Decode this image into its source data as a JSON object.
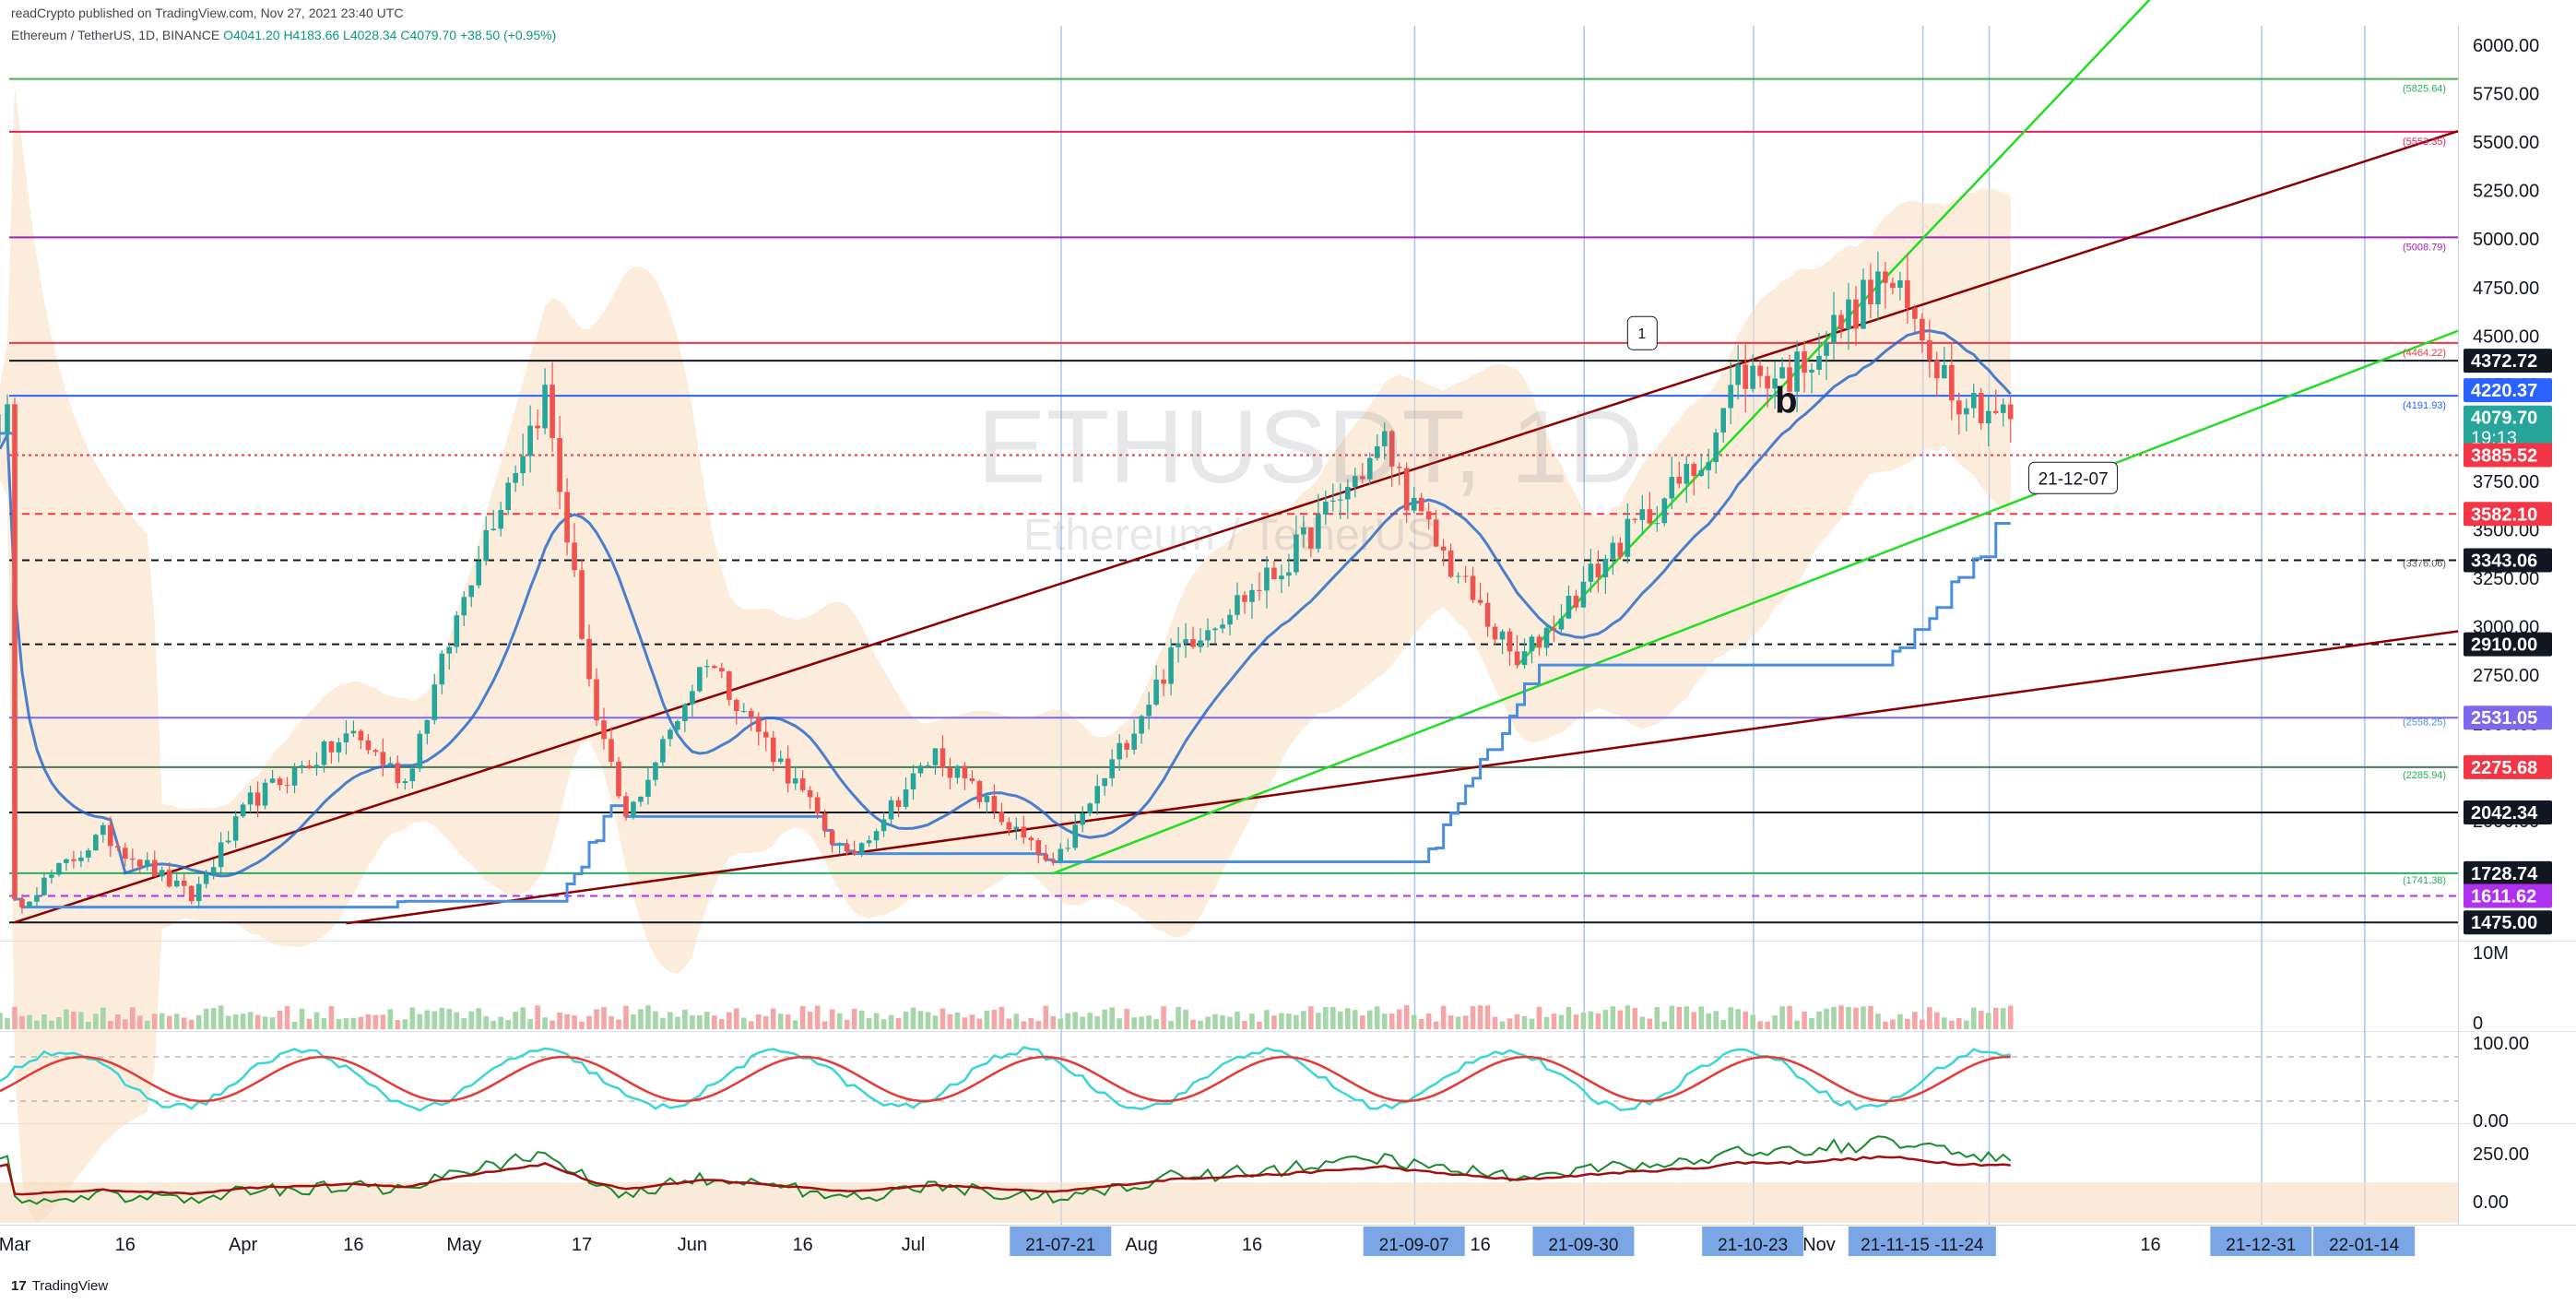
{
  "header": {
    "published": "readCrypto published on TradingView.com, Nov 27, 2021 23:40 UTC",
    "symbol_line": "Ethereum / TetherUS, 1D, BINANCE",
    "ohlc": "O4041.20 H4183.66 L4028.34 C4079.70 +38.50 (+0.95%)"
  },
  "watermark": {
    "symbol": "ETHUSDT, 1D",
    "name": "Ethereum / TetherUS"
  },
  "footer": {
    "logo": "17",
    "brand": "TradingView"
  },
  "colors": {
    "candle_up": "#26a69a",
    "candle_down": "#ef5350",
    "band": "#f7dcc0",
    "ma_blue": "#1e64c8",
    "trend_green": "#22dd22",
    "channel_red": "#8b0000"
  },
  "chart_data": {
    "type": "candlestick",
    "title": "ETHUSDT, 1D",
    "ylim": [
      1400,
      6100
    ],
    "price_axis_ticks": [
      6000,
      5750,
      5500,
      5250,
      5000,
      4750,
      4500,
      4250,
      4000,
      3750,
      3500,
      3250,
      3000,
      2750,
      2500,
      2250,
      2000,
      1750,
      1500
    ],
    "price_axis_labels": [
      "6000.00",
      "5750.00",
      "5500.00",
      "5250.00",
      "5000.00",
      "4750.00",
      "4500.00",
      "4250.00",
      "4000.00",
      "3750.00",
      "3500.00",
      "3250.00",
      "3000.00",
      "2750.00",
      "2500.00",
      "2250.00",
      "2000.00",
      "1750.00",
      "1500.00"
    ],
    "time_axis_labels": [
      {
        "date": "2021-03-01",
        "label": "Mar"
      },
      {
        "date": "2021-03-16",
        "label": "16"
      },
      {
        "date": "2021-04-01",
        "label": "Apr"
      },
      {
        "date": "2021-04-16",
        "label": "16"
      },
      {
        "date": "2021-05-01",
        "label": "May"
      },
      {
        "date": "2021-05-17",
        "label": "17"
      },
      {
        "date": "2021-06-01",
        "label": "Jun"
      },
      {
        "date": "2021-06-16",
        "label": "16"
      },
      {
        "date": "2021-07-01",
        "label": "Jul"
      },
      {
        "date": "2021-08-01",
        "label": "Aug"
      },
      {
        "date": "2021-08-16",
        "label": "16"
      },
      {
        "date": "2021-09-16",
        "label": "16"
      },
      {
        "date": "2021-11-01",
        "label": "Nov"
      },
      {
        "date": "2021-12-16",
        "label": "16"
      }
    ],
    "highlighted_dates": [
      {
        "date": "2021-07-21",
        "label": "21-07-21"
      },
      {
        "date": "2021-09-07",
        "label": "21-09-07"
      },
      {
        "date": "2021-09-30",
        "label": "21-09-30"
      },
      {
        "date": "2021-10-23",
        "label": "21-10-23"
      },
      {
        "date": "2021-11-15",
        "label": "21-11-15 -11-24"
      },
      {
        "date": "2021-12-31",
        "label": "21-12-31"
      },
      {
        "date": "2022-01-14",
        "label": "22-01-14"
      }
    ],
    "vertical_marker_dates": [
      "2021-07-21",
      "2021-09-07",
      "2021-09-30",
      "2021-10-23",
      "2021-11-15",
      "2021-11-24",
      "2021-12-31",
      "2022-01-14"
    ],
    "price_labels": [
      {
        "value": 4372.72,
        "label": "4372.72",
        "color": "#131722"
      },
      {
        "value": 4220.37,
        "label": "4220.37",
        "color": "#2962ff"
      },
      {
        "value": 4079.7,
        "label": "4079.70",
        "color": "#26a69a",
        "countdown": "19:13"
      },
      {
        "value": 3885.52,
        "label": "3885.52",
        "color": "#f23645"
      },
      {
        "value": 3582.1,
        "label": "3582.10",
        "color": "#f23645"
      },
      {
        "value": 3343.06,
        "label": "3343.06",
        "color": "#131722"
      },
      {
        "value": 2910.0,
        "label": "2910.00",
        "color": "#131722"
      },
      {
        "value": 2531.05,
        "label": "2531.05",
        "color": "#7b68ee"
      },
      {
        "value": 2275.68,
        "label": "2275.68",
        "color": "#f23645"
      },
      {
        "value": 2042.34,
        "label": "2042.34",
        "color": "#131722"
      },
      {
        "value": 1728.74,
        "label": "1728.74",
        "color": "#131722"
      },
      {
        "value": 1611.62,
        "label": "1611.62",
        "color": "#b030f0"
      },
      {
        "value": 1475.0,
        "label": "1475.00",
        "color": "#131722"
      }
    ],
    "small_level_labels": [
      {
        "value": 5825.64,
        "label": "(5825.64)",
        "color": "#27ae60"
      },
      {
        "value": 5553.35,
        "label": "(5553.35)",
        "color": "#e91e63"
      },
      {
        "value": 5008.79,
        "label": "(5008.79)",
        "color": "#9c27b0"
      },
      {
        "value": 4464.22,
        "label": "(4464.22)",
        "color": "#f23645"
      },
      {
        "value": 4191.93,
        "label": "(4191.93)",
        "color": "#2962ff"
      },
      {
        "value": 3376.06,
        "label": "(3376.06)",
        "color": "#555555"
      },
      {
        "value": 2558.25,
        "label": "(2558.25)",
        "color": "#4a90d9"
      },
      {
        "value": 2285.94,
        "label": "(2285.94)",
        "color": "#27ae60"
      },
      {
        "value": 1741.38,
        "label": "(1741.38)",
        "color": "#27ae60"
      }
    ],
    "horizontal_levels": [
      {
        "value": 5825.64,
        "color": "#4caf50",
        "style": "solid"
      },
      {
        "value": 5553.35,
        "color": "#e91e63",
        "style": "solid"
      },
      {
        "value": 5008.79,
        "color": "#9c27b0",
        "style": "solid"
      },
      {
        "value": 4464.22,
        "color": "#f23645",
        "style": "solid"
      },
      {
        "value": 4372.72,
        "color": "#131722",
        "style": "solid"
      },
      {
        "value": 4191.93,
        "color": "#2962ff",
        "style": "solid"
      },
      {
        "value": 3885.52,
        "color": "#f23645",
        "style": "dotted"
      },
      {
        "value": 3582.1,
        "color": "#f23645",
        "style": "dashed"
      },
      {
        "value": 3343.06,
        "color": "#131722",
        "style": "dashed"
      },
      {
        "value": 2910.0,
        "color": "#131722",
        "style": "dashed"
      },
      {
        "value": 2531.05,
        "color": "#7b68ee",
        "style": "solid"
      },
      {
        "value": 2275.68,
        "color": "#4a7a5a",
        "style": "solid"
      },
      {
        "value": 2042.34,
        "color": "#131722",
        "style": "solid"
      },
      {
        "value": 1728.74,
        "color": "#27ae60",
        "style": "solid"
      },
      {
        "value": 1611.62,
        "color": "#b030f0",
        "style": "dashed"
      },
      {
        "value": 1475.0,
        "color": "#131722",
        "style": "solid"
      }
    ],
    "series": [
      {
        "name": "ETHUSDT",
        "points": [
          [
            "2021-03-01",
            1560
          ],
          [
            "2021-03-13",
            1930
          ],
          [
            "2021-03-25",
            1600
          ],
          [
            "2021-04-02",
            2100
          ],
          [
            "2021-04-16",
            2450
          ],
          [
            "2021-04-23",
            2200
          ],
          [
            "2021-05-03",
            3400
          ],
          [
            "2021-05-12",
            4200
          ],
          [
            "2021-05-19",
            2500
          ],
          [
            "2021-05-23",
            2000
          ],
          [
            "2021-06-03",
            2850
          ],
          [
            "2021-06-22",
            1800
          ],
          [
            "2021-07-04",
            2350
          ],
          [
            "2021-07-20",
            1750
          ],
          [
            "2021-08-06",
            2900
          ],
          [
            "2021-08-20",
            3300
          ],
          [
            "2021-09-03",
            3950
          ],
          [
            "2021-09-07",
            3600
          ],
          [
            "2021-09-21",
            2800
          ],
          [
            "2021-10-04",
            3400
          ],
          [
            "2021-10-16",
            3850
          ],
          [
            "2021-10-21",
            4300
          ],
          [
            "2021-10-28",
            4300
          ],
          [
            "2021-11-10",
            4800
          ],
          [
            "2021-11-20",
            4200
          ],
          [
            "2021-11-27",
            4080
          ]
        ]
      }
    ],
    "annotations": [
      {
        "label": "1",
        "date": "2021-10-08",
        "value": 4220
      },
      {
        "label": "b",
        "date": "2021-10-26",
        "value": 4191
      },
      {
        "label": "21-12-07",
        "date": "2021-12-07",
        "value": 3782
      }
    ],
    "volume_panel": {
      "labels": [
        "10M",
        "0"
      ]
    },
    "oscillator_panel_1": {
      "labels": [
        "100.00",
        "0.00"
      ]
    },
    "oscillator_panel_2": {
      "labels": [
        "250.00",
        "0.00"
      ]
    }
  }
}
